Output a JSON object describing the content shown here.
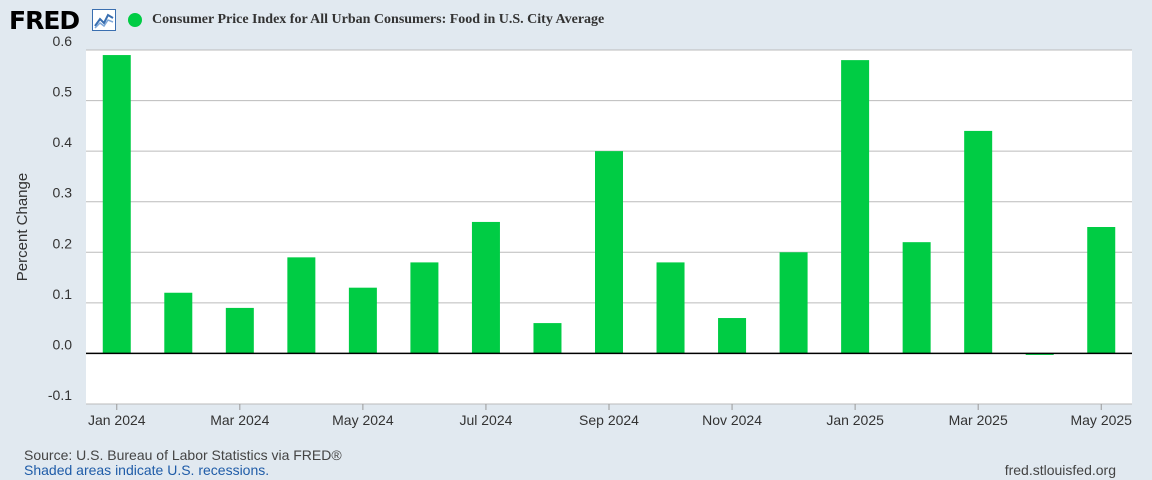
{
  "header": {
    "logo_text": "FRED",
    "logo_icon": "line-chart-icon",
    "title": "Consumer Price Index for All Urban Consumers: Food in U.S. City Average"
  },
  "footer": {
    "source": "Source: U.S. Bureau of Labor Statistics via FRED®",
    "recessions": "Shaded areas indicate U.S. recessions.",
    "url": "fred.stlouisfed.org"
  },
  "colors": {
    "bar": "#00cc44",
    "background": "#e1e9f0",
    "plot": "#ffffff",
    "grid": "#bbbbbb",
    "zero_line": "#000000"
  },
  "chart_data": {
    "type": "bar",
    "title": "Consumer Price Index for All Urban Consumers: Food in U.S. City Average",
    "ylabel": "Percent Change",
    "xlabel": "",
    "ylim": [
      -0.1,
      0.6
    ],
    "yticks": [
      "-0.1",
      "0.0",
      "0.1",
      "0.2",
      "0.3",
      "0.4",
      "0.5",
      "0.6"
    ],
    "grid": true,
    "categories": [
      "2024-01",
      "2024-02",
      "2024-03",
      "2024-04",
      "2024-05",
      "2024-06",
      "2024-07",
      "2024-08",
      "2024-09",
      "2024-10",
      "2024-11",
      "2024-12",
      "2025-01",
      "2025-02",
      "2025-03",
      "2025-04",
      "2025-05"
    ],
    "xtick_labels": [
      "Jan 2024",
      "",
      "Mar 2024",
      "",
      "May 2024",
      "",
      "Jul 2024",
      "",
      "Sep 2024",
      "",
      "Nov 2024",
      "",
      "Jan 2025",
      "",
      "Mar 2025",
      "",
      "May 2025"
    ],
    "series": [
      {
        "values": [
          0.59,
          0.12,
          0.09,
          0.19,
          0.13,
          0.18,
          0.26,
          0.06,
          0.4,
          0.18,
          0.07,
          0.2,
          0.58,
          0.22,
          0.44,
          -0.003,
          0.25
        ]
      }
    ]
  }
}
